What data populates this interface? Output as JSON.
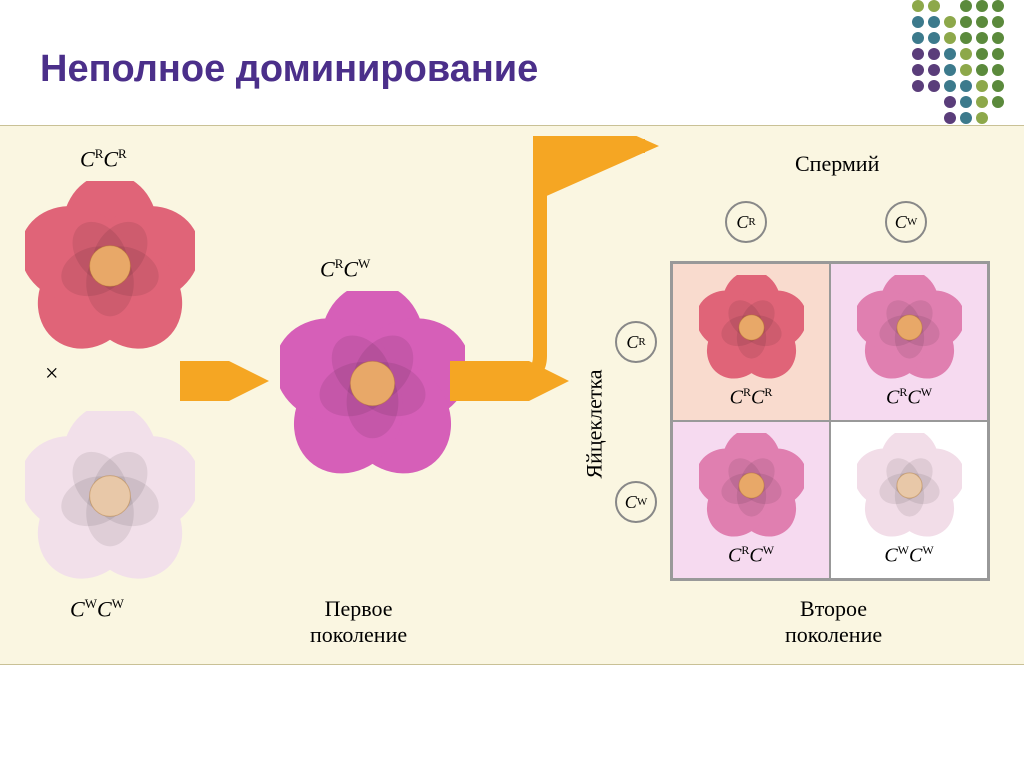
{
  "title": "Неполное доминирование",
  "dots": {
    "colors": [
      [
        "#8da84a",
        "#8da84a",
        "transparent",
        "#5b8a3c",
        "#5b8a3c",
        "#5b8a3c"
      ],
      [
        "#3c7a8c",
        "#3c7a8c",
        "#8da84a",
        "#5b8a3c",
        "#5b8a3c",
        "#5b8a3c"
      ],
      [
        "#3c7a8c",
        "#3c7a8c",
        "#8da84a",
        "#5b8a3c",
        "#5b8a3c",
        "#5b8a3c"
      ],
      [
        "#5a3d7a",
        "#5a3d7a",
        "#3c7a8c",
        "#8da84a",
        "#5b8a3c",
        "#5b8a3c"
      ],
      [
        "#5a3d7a",
        "#5a3d7a",
        "#3c7a8c",
        "#8da84a",
        "#5b8a3c",
        "#5b8a3c"
      ],
      [
        "#5a3d7a",
        "#5a3d7a",
        "#3c7a8c",
        "#3c7a8c",
        "#8da84a",
        "#5b8a3c"
      ],
      [
        "transparent",
        "transparent",
        "#5a3d7a",
        "#3c7a8c",
        "#8da84a",
        "#5b8a3c"
      ],
      [
        "transparent",
        "transparent",
        "#5a3d7a",
        "#3c7a8c",
        "#8da84a",
        "transparent"
      ]
    ]
  },
  "parents": {
    "red": {
      "genotype_html": "C<sup>R</sup>C<sup>R</sup>",
      "color": "#e06478",
      "center": "#e8a868"
    },
    "white": {
      "genotype_html": "C<sup>W</sup>C<sup>W</sup>",
      "color": "#f2e0ea",
      "center": "#e8c8a8"
    }
  },
  "f1": {
    "genotype_html": "C<sup>R</sup>C<sup>W</sup>",
    "color": "#d65fb8",
    "center": "#e8a868",
    "label": "Первое\nпоколение"
  },
  "punnett": {
    "sperm_label": "Спермий",
    "egg_label": "Яйцеклетка",
    "col_gametes": [
      "C<sup>R</sup>",
      "C<sup>W</sup>"
    ],
    "row_gametes": [
      "C<sup>R</sup>",
      "C<sup>W</sup>"
    ],
    "cells": [
      {
        "bg": "#f9dbce",
        "flower_color": "#e06478",
        "flower_center": "#e8a868",
        "genotype_html": "C<sup>R</sup>C<sup>R</sup>"
      },
      {
        "bg": "#f6daf0",
        "flower_color": "#e07fb0",
        "flower_center": "#e8a868",
        "genotype_html": "C<sup>R</sup>C<sup>W</sup>"
      },
      {
        "bg": "#f6daf0",
        "flower_color": "#e07fb0",
        "flower_center": "#e8a868",
        "genotype_html": "C<sup>R</sup>C<sup>W</sup>"
      },
      {
        "bg": "#ffffff",
        "flower_color": "#f2dde8",
        "flower_center": "#e8c8a8",
        "genotype_html": "C<sup>W</sup>C<sup>W</sup>"
      }
    ],
    "label": "Второе\nпоколение"
  },
  "arrows": {
    "color": "#f5a623"
  },
  "cross_symbol": "×"
}
